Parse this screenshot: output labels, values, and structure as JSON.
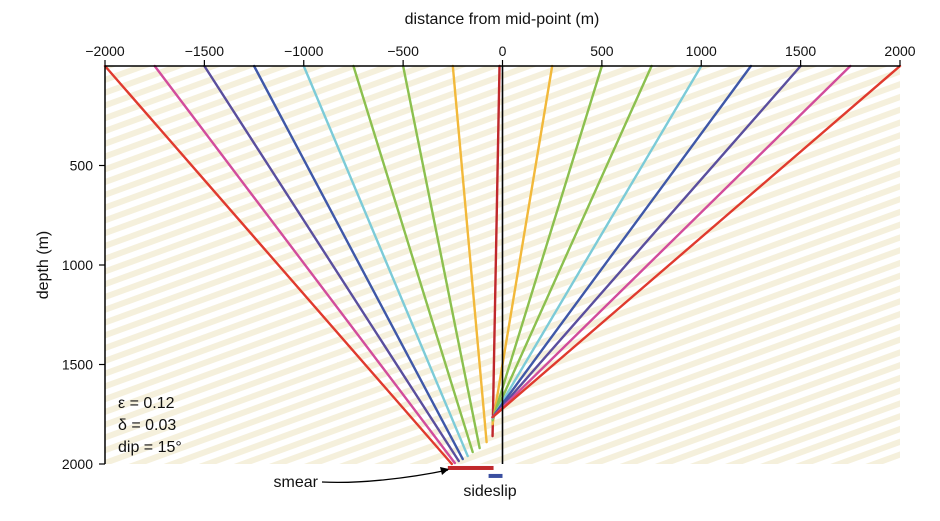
{
  "chart_data": {
    "type": "line",
    "xlabel": "distance from mid-point (m)",
    "ylabel": "depth (m)",
    "xlim": [
      -2000,
      2000
    ],
    "ylim": [
      2000,
      0
    ],
    "x_ticks": [
      -2000,
      -1500,
      -1000,
      -500,
      0,
      500,
      1000,
      1500,
      2000
    ],
    "x_tick_labels": [
      "−2000",
      "−1500",
      "−1000",
      "−500",
      "0",
      "500",
      "1000",
      "1500",
      "2000"
    ],
    "y_ticks": [
      500,
      1000,
      1500,
      2000
    ],
    "y_tick_labels": [
      "500",
      "1000",
      "1500",
      "2000"
    ],
    "grid": false,
    "background": "diagonal beige stripes",
    "annotations": {
      "params": [
        "ε = 0.12",
        "δ = 0.03",
        "dip = 15°"
      ],
      "smear_label": "smear",
      "sideslip_label": "sideslip"
    },
    "colors": {
      "2000": "#e03a2e",
      "1750": "#d24c9b",
      "1500": "#5a4f9e",
      "1250": "#3f58a8",
      "1000": "#7ccbd8",
      "750": "#8cc04f",
      "500": "#8cc04f",
      "250": "#f2b93b",
      "0": "#c0282c",
      "axis": "#000000",
      "smear_bar": "#c0282c",
      "sideslip_bar": "#3a4fa0",
      "stripe": "#f5f0dc"
    },
    "rays": [
      {
        "offset": -2000,
        "surface_x": -2000,
        "reflection": {
          "x": -255,
          "depth": 2000
        }
      },
      {
        "offset": -1750,
        "surface_x": -1750,
        "reflection": {
          "x": -240,
          "depth": 1995
        }
      },
      {
        "offset": -1500,
        "surface_x": -1500,
        "reflection": {
          "x": -220,
          "depth": 1985
        }
      },
      {
        "offset": -1250,
        "surface_x": -1250,
        "reflection": {
          "x": -200,
          "depth": 1975
        }
      },
      {
        "offset": -1000,
        "surface_x": -1000,
        "reflection": {
          "x": -175,
          "depth": 1960
        }
      },
      {
        "offset": -750,
        "surface_x": -750,
        "reflection": {
          "x": -150,
          "depth": 1940
        }
      },
      {
        "offset": -500,
        "surface_x": -500,
        "reflection": {
          "x": -115,
          "depth": 1920
        }
      },
      {
        "offset": -250,
        "surface_x": -250,
        "reflection": {
          "x": -80,
          "depth": 1890
        }
      },
      {
        "offset": 0,
        "surface_x": -15,
        "reflection": {
          "x": -50,
          "depth": 1860
        }
      },
      {
        "offset": 250,
        "surface_x": 250,
        "reflection": {
          "x": -50,
          "depth": 1800
        }
      },
      {
        "offset": 500,
        "surface_x": 500,
        "reflection": {
          "x": -50,
          "depth": 1780
        }
      },
      {
        "offset": 750,
        "surface_x": 750,
        "reflection": {
          "x": -50,
          "depth": 1775
        }
      },
      {
        "offset": 1000,
        "surface_x": 1000,
        "reflection": {
          "x": -50,
          "depth": 1770
        }
      },
      {
        "offset": 1250,
        "surface_x": 1250,
        "reflection": {
          "x": -50,
          "depth": 1765
        }
      },
      {
        "offset": 1500,
        "surface_x": 1500,
        "reflection": {
          "x": -50,
          "depth": 1765
        }
      },
      {
        "offset": 1750,
        "surface_x": 1750,
        "reflection": {
          "x": -50,
          "depth": 1765
        }
      },
      {
        "offset": 2000,
        "surface_x": 2000,
        "reflection": {
          "x": -50,
          "depth": 1765
        }
      }
    ],
    "vertical_line": {
      "x": 0,
      "depth_from": 0,
      "depth_to": 2000
    },
    "smear_bar": {
      "x_from": -275,
      "x_to": -45,
      "depth": 2020
    },
    "sideslip_bar": {
      "x_from": -70,
      "x_to": 0,
      "depth": 2060
    }
  }
}
